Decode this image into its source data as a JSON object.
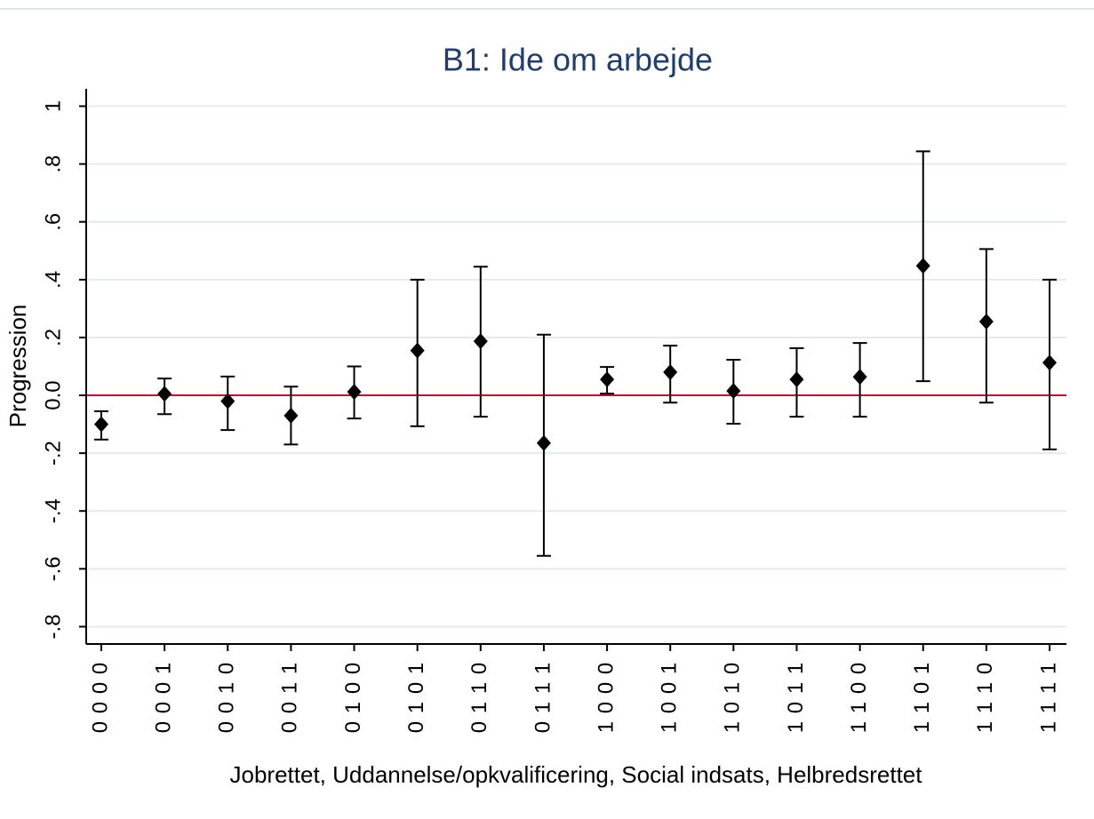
{
  "chart_data": {
    "type": "errorbar",
    "title": "B1: Ide om arbejde",
    "y_label": "Progression",
    "x_label": "Jobrettet, Uddannelse/opkvalificering, Social indsats, Helbredsrettet",
    "categories": [
      "0 0 0 0",
      "0 0 0 1",
      "0 0 1 0",
      "0 0 1 1",
      "0 1 0 0",
      "0 1 0 1",
      "0 1 1 0",
      "0 1 1 1",
      "1 0 0 0",
      "1 0 0 1",
      "1 0 1 0",
      "1 0 1 1",
      "1 1 0 0",
      "1 1 0 1",
      "1 1 1 0",
      "1 1 1 1"
    ],
    "series": [
      {
        "color": "#000000",
        "values": [
          -0.1,
          0.005,
          -0.02,
          -0.07,
          0.012,
          0.155,
          0.187,
          -0.165,
          0.055,
          0.08,
          0.015,
          0.055,
          0.064,
          0.448,
          0.255,
          0.113
        ],
        "low": [
          -0.153,
          -0.065,
          -0.12,
          -0.17,
          -0.08,
          -0.107,
          -0.074,
          -0.555,
          0.006,
          -0.025,
          -0.098,
          -0.074,
          -0.074,
          0.049,
          -0.025,
          -0.187
        ],
        "high": [
          -0.055,
          0.058,
          0.065,
          0.03,
          0.1,
          0.4,
          0.445,
          0.21,
          0.098,
          0.172,
          0.123,
          0.163,
          0.181,
          0.844,
          0.506,
          0.4
        ]
      }
    ],
    "ylim": [
      -0.86,
      1.06
    ],
    "yticks": [
      {
        "value": -0.8,
        "label": "-.8"
      },
      {
        "value": -0.6,
        "label": "-.6"
      },
      {
        "value": -0.4,
        "label": "-.4"
      },
      {
        "value": -0.2,
        "label": "-.2"
      },
      {
        "value": 0,
        "label": "0.0"
      },
      {
        "value": 0.2,
        "label": ".2"
      },
      {
        "value": 0.4,
        "label": ".4"
      },
      {
        "value": 0.6,
        "label": ".6"
      },
      {
        "value": 0.8,
        "label": ".8"
      },
      1
    ],
    "grid": true,
    "reference_line": {
      "value": 0,
      "color": "#c8102e"
    }
  }
}
